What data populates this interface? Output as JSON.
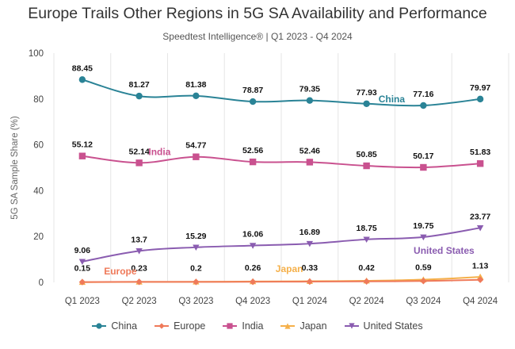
{
  "chart_data": {
    "type": "line",
    "title": "Europe Trails Other Regions in 5G SA Availability and Performance",
    "subtitle": "Speedtest Intelligence® | Q1 2023 - Q4 2024",
    "xlabel": "",
    "ylabel": "5G SA Sample Share (%)",
    "ylim": [
      0,
      100
    ],
    "yticks": [
      0,
      20,
      40,
      60,
      80,
      100
    ],
    "grid": "vertical",
    "legend_position": "bottom",
    "categories": [
      "Q1 2023",
      "Q2 2023",
      "Q3 2023",
      "Q4 2023",
      "Q1 2024",
      "Q2 2024",
      "Q3 2024",
      "Q4 2024"
    ],
    "series": [
      {
        "name": "China",
        "color": "#2a8396",
        "marker": "circle",
        "values": [
          88.45,
          81.27,
          81.38,
          78.87,
          79.35,
          77.93,
          77.16,
          79.97
        ],
        "show_labels": true,
        "inline_label": "China"
      },
      {
        "name": "Europe",
        "color": "#ef7a5a",
        "marker": "diamond",
        "values": [
          0.15,
          0.23,
          0.2,
          0.26,
          0.33,
          0.42,
          0.59,
          1.13
        ],
        "show_labels": true,
        "inline_label": "Europe"
      },
      {
        "name": "India",
        "color": "#c9518f",
        "marker": "square",
        "values": [
          55.12,
          52.14,
          54.77,
          52.56,
          52.46,
          50.85,
          50.17,
          51.83
        ],
        "show_labels": true,
        "inline_label": "India"
      },
      {
        "name": "Japan",
        "color": "#f5b04a",
        "marker": "triangle-up",
        "values": [
          0.1,
          0.2,
          0.25,
          0.4,
          0.5,
          0.7,
          1.2,
          2.4
        ],
        "show_labels": false,
        "inline_label": "Japan"
      },
      {
        "name": "United States",
        "color": "#8a5cb0",
        "marker": "triangle-down",
        "values": [
          9.06,
          13.7,
          15.29,
          16.06,
          16.89,
          18.75,
          19.75,
          23.77
        ],
        "show_labels": true,
        "inline_label": "United States"
      }
    ]
  }
}
